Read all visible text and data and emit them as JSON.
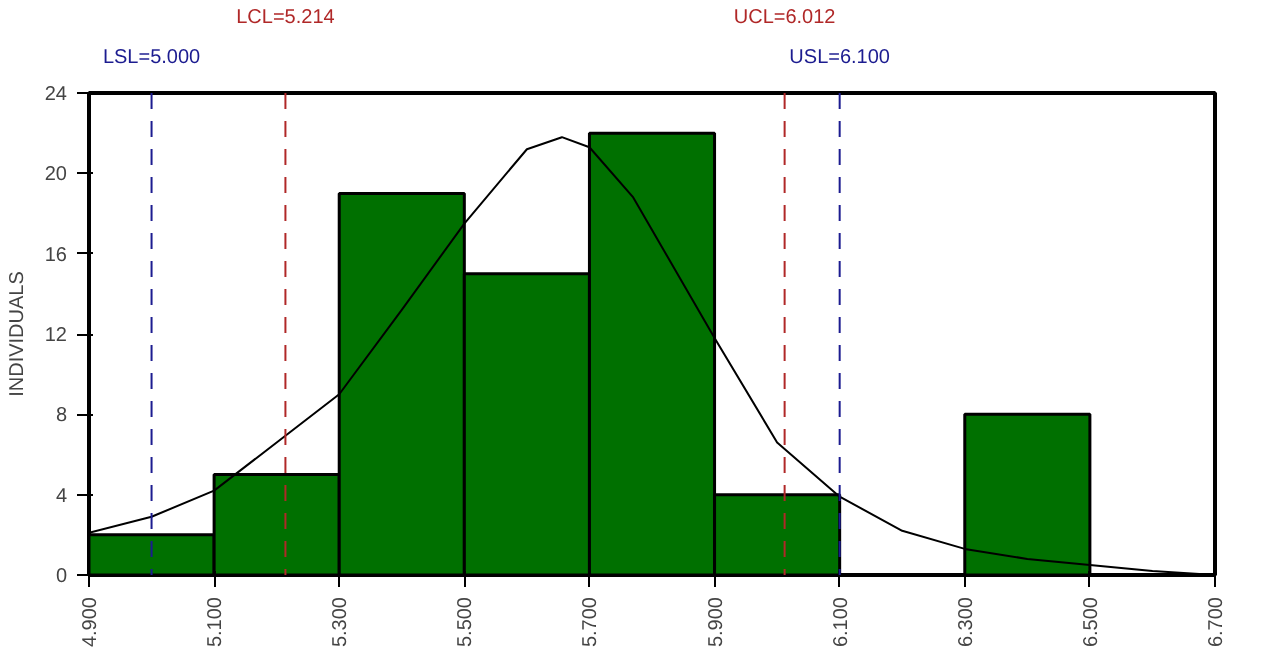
{
  "chart_data": {
    "type": "histogram",
    "ylabel": "INDIVIDUALS",
    "bins": [
      4.9,
      5.1,
      5.3,
      5.5,
      5.7,
      5.9,
      6.1,
      6.3,
      6.5,
      6.7
    ],
    "values": [
      2,
      5,
      19,
      15,
      22,
      4,
      0,
      8,
      0
    ],
    "color": "#007000",
    "series": [
      {
        "type": "line",
        "color": "#000000",
        "x": [
          4.9,
          5.0,
          5.1,
          5.2,
          5.3,
          5.4,
          5.5,
          5.6,
          5.656,
          5.7,
          5.77,
          5.9,
          6.0,
          6.1,
          6.2,
          6.3,
          6.4,
          6.5,
          6.6,
          6.7
        ],
        "values": [
          2.1,
          2.9,
          4.2,
          6.6,
          9.0,
          13.2,
          17.5,
          21.2,
          21.8,
          21.3,
          18.8,
          11.8,
          6.6,
          3.9,
          2.2,
          1.3,
          0.8,
          0.5,
          0.2,
          0.0
        ]
      }
    ],
    "xlim": [
      4.9,
      6.7
    ],
    "ylim": [
      0,
      24
    ],
    "xticks": [
      {
        "value": 4.9,
        "label": "4.900"
      },
      {
        "value": 5.1,
        "label": "5.100"
      },
      {
        "value": 5.3,
        "label": "5.300"
      },
      {
        "value": 5.5,
        "label": "5.500"
      },
      {
        "value": 5.7,
        "label": "5.700"
      },
      {
        "value": 5.9,
        "label": "5.900"
      },
      {
        "value": 6.1,
        "label": "6.100"
      },
      {
        "value": 6.3,
        "label": "6.300"
      },
      {
        "value": 6.5,
        "label": "6.500"
      },
      {
        "value": 6.7,
        "label": "6.700"
      }
    ],
    "yticks": [
      0,
      4,
      8,
      12,
      16,
      20,
      24
    ],
    "grid": false,
    "ref_lines": [
      {
        "axis": "x",
        "value": 5.0,
        "label": "LSL=5.000",
        "color": "#1c1c90",
        "line_style": "dashed"
      },
      {
        "axis": "x",
        "value": 5.214,
        "label": "LCL=5.214",
        "color": "#b02828",
        "line_style": "dashed"
      },
      {
        "axis": "x",
        "value": 6.012,
        "label": "UCL=6.012",
        "color": "#b02828",
        "line_style": "dashed"
      },
      {
        "axis": "x",
        "value": 6.1,
        "label": "USL=6.100",
        "color": "#1c1c90",
        "line_style": "dashed"
      }
    ]
  }
}
